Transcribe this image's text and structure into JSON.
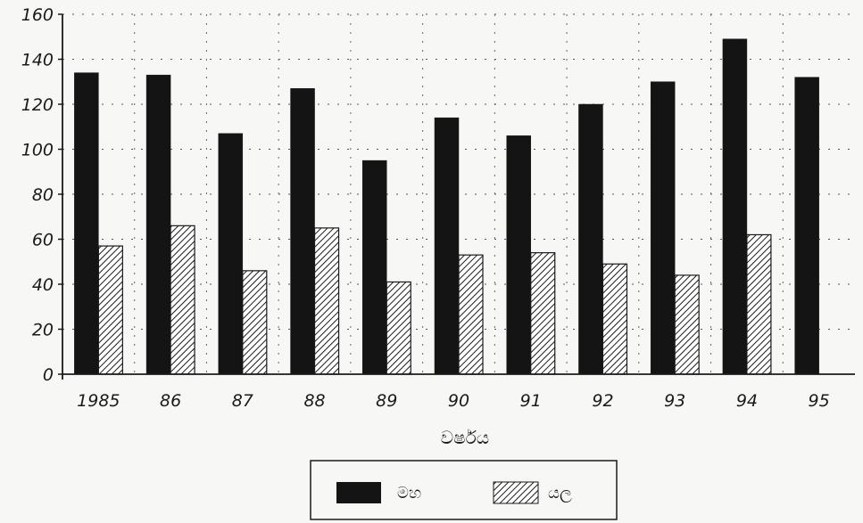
{
  "chart_data": {
    "type": "bar",
    "title": "",
    "xlabel": "වර්ෂය",
    "ylabel": "",
    "categories": [
      "1985",
      "86",
      "87",
      "88",
      "89",
      "90",
      "91",
      "92",
      "93",
      "94",
      "95"
    ],
    "y_ticks": [
      "0",
      "20",
      "40",
      "60",
      "80",
      "100",
      "120",
      "140",
      "160"
    ],
    "ylim": [
      0,
      160
    ],
    "grid": true,
    "legend_position": "bottom",
    "series": [
      {
        "name": "මහ",
        "values": [
          134,
          133,
          107,
          127,
          95,
          114,
          106,
          120,
          130,
          149,
          132
        ],
        "color": "#141414",
        "pattern": "solid"
      },
      {
        "name": "යල",
        "values": [
          57,
          66,
          46,
          65,
          41,
          53,
          54,
          49,
          44,
          62,
          null
        ],
        "color": "#ffffff",
        "pattern": "diagonal-hatch"
      }
    ]
  }
}
